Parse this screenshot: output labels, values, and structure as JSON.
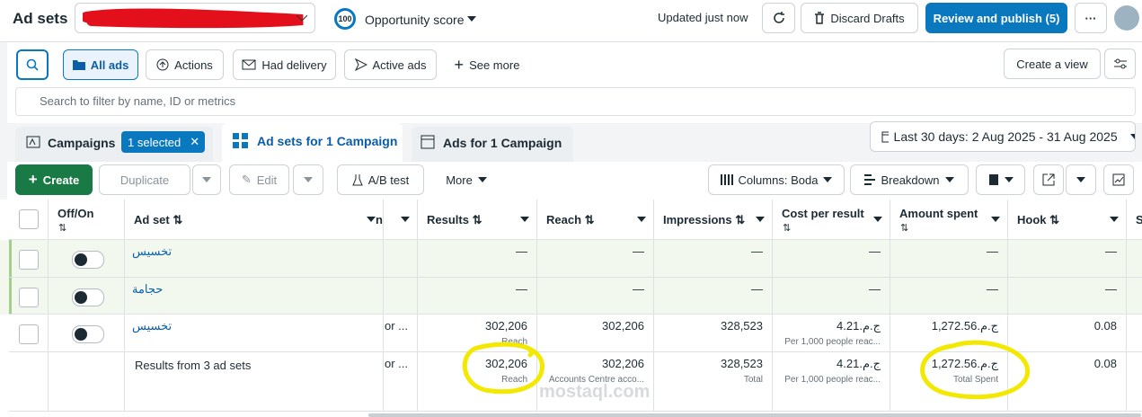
{
  "header": {
    "title": "Ad sets",
    "score": "100",
    "opportunity": "Opportunity score",
    "updated": "Updated just now",
    "discard": "Discard Drafts",
    "publish": "Review and publish (5)"
  },
  "toolbar": {
    "all_ads": "All ads",
    "actions": "Actions",
    "had_delivery": "Had delivery",
    "active_ads": "Active ads",
    "see_more": "See more",
    "create_view": "Create a view"
  },
  "search": {
    "placeholder": "Search to filter by name, ID or metrics"
  },
  "tabs": {
    "campaigns": "Campaigns",
    "selected": "1 selected",
    "ad_sets": "Ad sets for 1 Campaign",
    "ads": "Ads for 1 Campaign",
    "date": "Last 30 days: 2 Aug 2025 - 31 Aug 2025"
  },
  "actionbar": {
    "create": "Create",
    "duplicate": "Duplicate",
    "edit": "Edit",
    "ab_test": "A/B test",
    "more": "More",
    "columns": "Columns: Boda",
    "breakdown": "Breakdown"
  },
  "table": {
    "columns": [
      "Off/On",
      "Ad set",
      "n",
      "Results",
      "Reach",
      "Impressions",
      "Cost per result",
      "Amount spent",
      "Hook",
      "S"
    ],
    "rows": [
      {
        "name": "تخسيس",
        "cells": [
          null,
          "—",
          "—",
          "—",
          "—",
          "—",
          "—"
        ]
      },
      {
        "name": "حجامة",
        "cells": [
          null,
          "—",
          "—",
          "—",
          "—",
          "—",
          "—"
        ]
      },
      {
        "name": "تخسيس",
        "cells": [
          "or ...",
          {
            "value": "302,206",
            "sub": "Reach"
          },
          "302,206",
          "328,523",
          {
            "value": "ج.م.4.21",
            "sub": "Per 1,000 people reac..."
          },
          "ج.م.1,272.56",
          "0.08"
        ]
      }
    ],
    "total": {
      "name": "Results from 3 ad sets",
      "cells": [
        "or ...",
        {
          "value": "302,206",
          "sub": "Reach"
        },
        {
          "value": "302,206",
          "sub": "Accounts Centre acco..."
        },
        {
          "value": "328,523",
          "sub": "Total"
        },
        {
          "value": "ج.م.4.21",
          "sub": "Per 1,000 people reac..."
        },
        {
          "value": "ج.م.1,272.56",
          "sub": "Total Spent"
        },
        "0.08"
      ]
    }
  },
  "watermark": "mostaql.com"
}
